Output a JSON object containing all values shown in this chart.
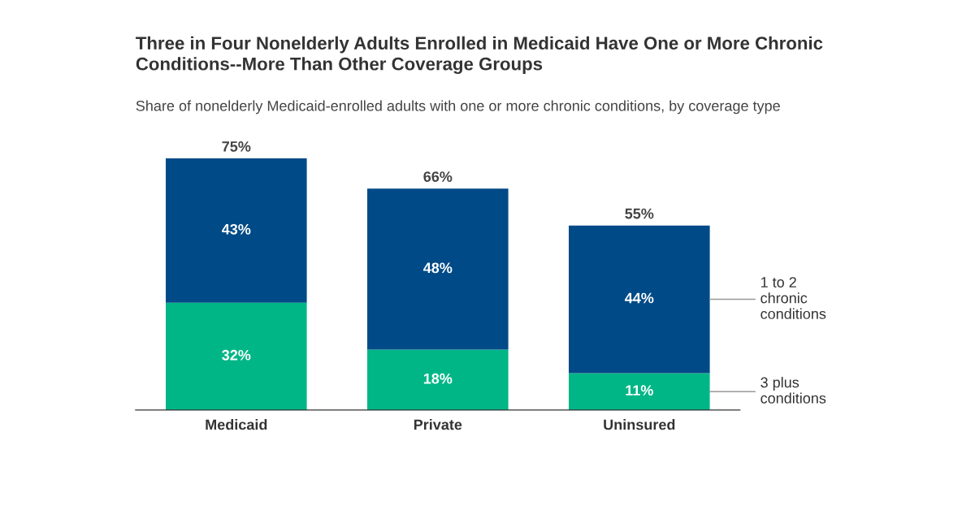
{
  "chart_data": {
    "type": "bar",
    "stacked": true,
    "title": "Three in Four Nonelderly Adults Enrolled in Medicaid Have One or More Chronic\nConditions--More Than Other Coverage Groups",
    "subtitle": "Share of nonelderly Medicaid-enrolled adults with one or more chronic conditions, by coverage type",
    "categories": [
      "Medicaid",
      "Private",
      "Uninsured"
    ],
    "series": [
      {
        "name": "3 plus\nconditions",
        "color": "#00b686",
        "values": [
          32,
          18,
          11
        ],
        "value_labels": [
          "32%",
          "18%",
          "11%"
        ]
      },
      {
        "name": "1 to 2\nchronic\nconditions",
        "color": "#004a87",
        "values": [
          43,
          48,
          44
        ],
        "value_labels": [
          "43%",
          "48%",
          "44%"
        ]
      }
    ],
    "totals": [
      "75%",
      "66%",
      "55%"
    ]
  }
}
